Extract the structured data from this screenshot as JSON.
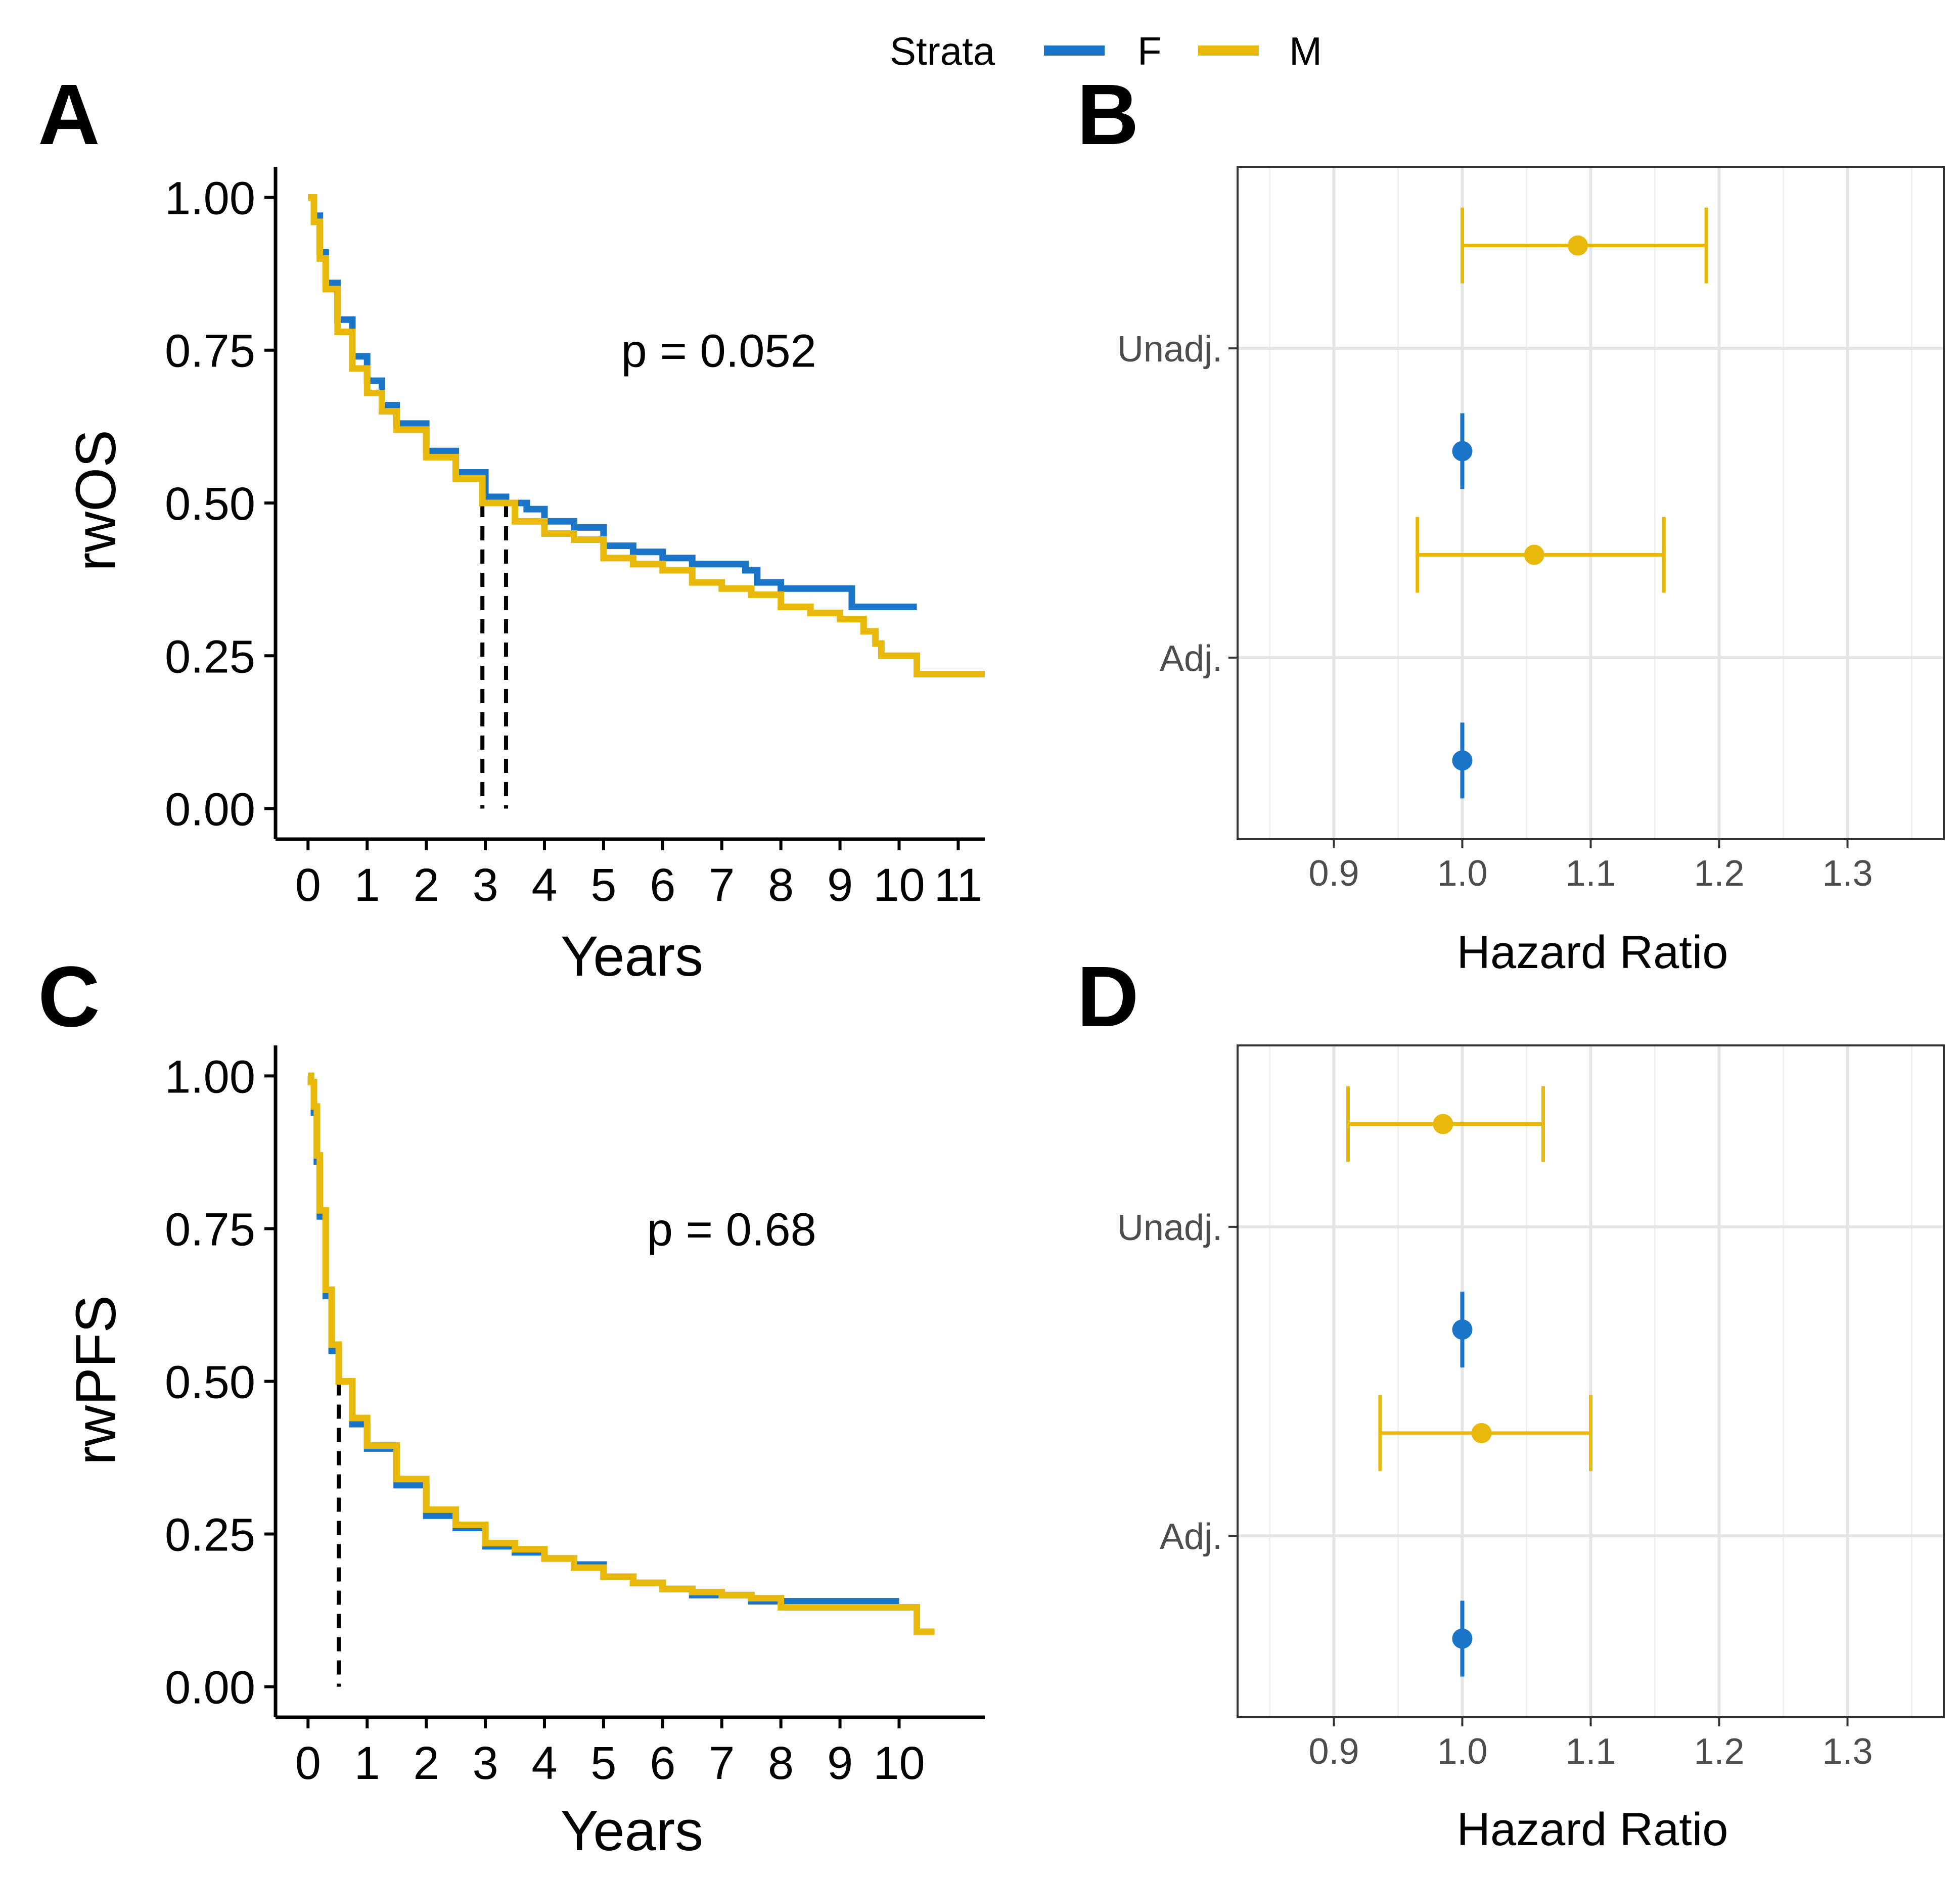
{
  "legend": {
    "title": "Strata",
    "items": [
      {
        "label": "F",
        "color": "#1A75C8"
      },
      {
        "label": "M",
        "color": "#E8B90A"
      }
    ]
  },
  "colors": {
    "F": "#1A75C8",
    "M": "#E8B90A",
    "median_line": "#000000",
    "grid": "#E5E5E5"
  },
  "panels": {
    "A": {
      "letter": "A"
    },
    "B": {
      "letter": "B"
    },
    "C": {
      "letter": "C"
    },
    "D": {
      "letter": "D"
    }
  },
  "chart_data": [
    {
      "panel": "A",
      "type": "line",
      "subtype": "kaplan-meier",
      "xlabel": "Years",
      "ylabel": "rwOS",
      "xlim": [
        -0.55,
        11.45
      ],
      "ylim": [
        -0.05,
        1.05
      ],
      "xticks": [
        0,
        1,
        2,
        3,
        4,
        5,
        6,
        7,
        8,
        9,
        10,
        11
      ],
      "xtick_labels": [
        "0",
        "1",
        "2",
        "3",
        "4",
        "5",
        "6",
        "7",
        "8",
        "9",
        "10",
        "11"
      ],
      "yticks": [
        0,
        0.25,
        0.5,
        0.75,
        1.0
      ],
      "ytick_labels": [
        "0.00",
        "0.25",
        "0.50",
        "0.75",
        "1.00"
      ],
      "annotation": "p = 0.052",
      "annotation_at": {
        "x": 8.6,
        "y": 0.75
      },
      "median_lines": [
        {
          "x": 2.95,
          "y": 0.5
        },
        {
          "x": 3.35,
          "y": 0.5
        }
      ],
      "series": [
        {
          "name": "F",
          "color": "#1A75C8",
          "points": [
            [
              0,
              1.0
            ],
            [
              0.1,
              0.97
            ],
            [
              0.2,
              0.91
            ],
            [
              0.3,
              0.86
            ],
            [
              0.5,
              0.8
            ],
            [
              0.75,
              0.74
            ],
            [
              1,
              0.7
            ],
            [
              1.25,
              0.66
            ],
            [
              1.5,
              0.63
            ],
            [
              2,
              0.585
            ],
            [
              2.5,
              0.55
            ],
            [
              3,
              0.51
            ],
            [
              3.35,
              0.5
            ],
            [
              3.7,
              0.49
            ],
            [
              4,
              0.47
            ],
            [
              4.5,
              0.46
            ],
            [
              5,
              0.43
            ],
            [
              5.5,
              0.42
            ],
            [
              6,
              0.41
            ],
            [
              6.5,
              0.4
            ],
            [
              7,
              0.4
            ],
            [
              7.4,
              0.39
            ],
            [
              7.6,
              0.37
            ],
            [
              8,
              0.36
            ],
            [
              8.5,
              0.36
            ],
            [
              9.2,
              0.36
            ],
            [
              9.2,
              0.33
            ],
            [
              10.3,
              0.33
            ]
          ]
        },
        {
          "name": "M",
          "color": "#E8B90A",
          "points": [
            [
              0,
              1.0
            ],
            [
              0.1,
              0.96
            ],
            [
              0.2,
              0.9
            ],
            [
              0.3,
              0.85
            ],
            [
              0.5,
              0.78
            ],
            [
              0.75,
              0.72
            ],
            [
              1,
              0.68
            ],
            [
              1.25,
              0.65
            ],
            [
              1.5,
              0.62
            ],
            [
              2,
              0.575
            ],
            [
              2.5,
              0.54
            ],
            [
              2.95,
              0.5
            ],
            [
              3.5,
              0.47
            ],
            [
              4,
              0.45
            ],
            [
              4.5,
              0.44
            ],
            [
              5,
              0.41
            ],
            [
              5.5,
              0.4
            ],
            [
              6,
              0.39
            ],
            [
              6.5,
              0.37
            ],
            [
              7,
              0.36
            ],
            [
              7.5,
              0.35
            ],
            [
              8,
              0.33
            ],
            [
              8.5,
              0.32
            ],
            [
              9,
              0.31
            ],
            [
              9.4,
              0.29
            ],
            [
              9.6,
              0.27
            ],
            [
              9.7,
              0.25
            ],
            [
              10,
              0.25
            ],
            [
              10.3,
              0.22
            ],
            [
              11.45,
              0.22
            ]
          ]
        }
      ]
    },
    {
      "panel": "B",
      "type": "scatter",
      "subtype": "forest",
      "xlabel": "Hazard Ratio",
      "xlim": [
        0.825,
        1.375
      ],
      "xticks": [
        0.9,
        1.0,
        1.1,
        1.2,
        1.3
      ],
      "xtick_labels": [
        "0.9",
        "1.0",
        "1.1",
        "1.2",
        "1.3"
      ],
      "categories": [
        "Unadj.",
        "Adj."
      ],
      "series": [
        {
          "name": "M",
          "color": "#E8B90A",
          "values": [
            {
              "category": "Unadj.",
              "estimate": 1.09,
              "lower": 1.0,
              "upper": 1.19
            },
            {
              "category": "Adj.",
              "estimate": 1.056,
              "lower": 0.965,
              "upper": 1.157
            }
          ]
        },
        {
          "name": "F",
          "color": "#1A75C8",
          "values": [
            {
              "category": "Unadj.",
              "estimate": 1.0,
              "lower": 1.0,
              "upper": 1.0
            },
            {
              "category": "Adj.",
              "estimate": 1.0,
              "lower": 1.0,
              "upper": 1.0
            }
          ]
        }
      ]
    },
    {
      "panel": "C",
      "type": "line",
      "subtype": "kaplan-meier",
      "xlabel": "Years",
      "ylabel": "rwPFS",
      "xlim": [
        -0.55,
        11.45
      ],
      "ylim": [
        -0.05,
        1.05
      ],
      "xticks": [
        0,
        1,
        2,
        3,
        4,
        5,
        6,
        7,
        8,
        9,
        10
      ],
      "xtick_labels": [
        "0",
        "1",
        "2",
        "3",
        "4",
        "5",
        "6",
        "7",
        "8",
        "9",
        "10"
      ],
      "yticks": [
        0,
        0.25,
        0.5,
        0.75,
        1.0
      ],
      "ytick_labels": [
        "0.00",
        "0.25",
        "0.50",
        "0.75",
        "1.00"
      ],
      "annotation": "p = 0.68",
      "annotation_at": {
        "x": 8.6,
        "y": 0.75
      },
      "median_lines": [
        {
          "x": 0.52,
          "y": 0.5
        }
      ],
      "series": [
        {
          "name": "F",
          "color": "#1A75C8",
          "points": [
            [
              0,
              1.0
            ],
            [
              0.05,
              0.99
            ],
            [
              0.1,
              0.94
            ],
            [
              0.15,
              0.86
            ],
            [
              0.2,
              0.77
            ],
            [
              0.3,
              0.64
            ],
            [
              0.4,
              0.55
            ],
            [
              0.52,
              0.5
            ],
            [
              0.75,
              0.43
            ],
            [
              1,
              0.39
            ],
            [
              1.5,
              0.33
            ],
            [
              2,
              0.28
            ],
            [
              2.5,
              0.26
            ],
            [
              3,
              0.23
            ],
            [
              3.5,
              0.22
            ],
            [
              4,
              0.21
            ],
            [
              4.5,
              0.2
            ],
            [
              5,
              0.18
            ],
            [
              5.5,
              0.17
            ],
            [
              6,
              0.16
            ],
            [
              6.5,
              0.15
            ],
            [
              7,
              0.15
            ],
            [
              7.5,
              0.14
            ],
            [
              8,
              0.14
            ],
            [
              9,
              0.14
            ],
            [
              10,
              0.14
            ]
          ]
        },
        {
          "name": "M",
          "color": "#E8B90A",
          "points": [
            [
              0,
              1.0
            ],
            [
              0.05,
              0.99
            ],
            [
              0.1,
              0.95
            ],
            [
              0.15,
              0.87
            ],
            [
              0.2,
              0.78
            ],
            [
              0.3,
              0.65
            ],
            [
              0.4,
              0.56
            ],
            [
              0.52,
              0.5
            ],
            [
              0.75,
              0.44
            ],
            [
              1,
              0.395
            ],
            [
              1.5,
              0.34
            ],
            [
              2,
              0.29
            ],
            [
              2.5,
              0.265
            ],
            [
              3,
              0.235
            ],
            [
              3.5,
              0.225
            ],
            [
              4,
              0.21
            ],
            [
              4.5,
              0.195
            ],
            [
              5,
              0.18
            ],
            [
              5.5,
              0.17
            ],
            [
              6,
              0.16
            ],
            [
              6.5,
              0.155
            ],
            [
              7,
              0.15
            ],
            [
              7.5,
              0.145
            ],
            [
              8,
              0.13
            ],
            [
              9,
              0.13
            ],
            [
              10.3,
              0.13
            ],
            [
              10.3,
              0.09
            ],
            [
              10.6,
              0.09
            ]
          ]
        }
      ]
    },
    {
      "panel": "D",
      "type": "scatter",
      "subtype": "forest",
      "xlabel": "Hazard Ratio",
      "xlim": [
        0.825,
        1.375
      ],
      "xticks": [
        0.9,
        1.0,
        1.1,
        1.2,
        1.3
      ],
      "xtick_labels": [
        "0.9",
        "1.0",
        "1.1",
        "1.2",
        "1.3"
      ],
      "categories": [
        "Unadj.",
        "Adj."
      ],
      "series": [
        {
          "name": "M",
          "color": "#E8B90A",
          "values": [
            {
              "category": "Unadj.",
              "estimate": 0.985,
              "lower": 0.911,
              "upper": 1.063
            },
            {
              "category": "Adj.",
              "estimate": 1.015,
              "lower": 0.936,
              "upper": 1.1
            }
          ]
        },
        {
          "name": "F",
          "color": "#1A75C8",
          "values": [
            {
              "category": "Unadj.",
              "estimate": 1.0,
              "lower": 1.0,
              "upper": 1.0
            },
            {
              "category": "Adj.",
              "estimate": 1.0,
              "lower": 1.0,
              "upper": 1.0
            }
          ]
        }
      ]
    }
  ]
}
